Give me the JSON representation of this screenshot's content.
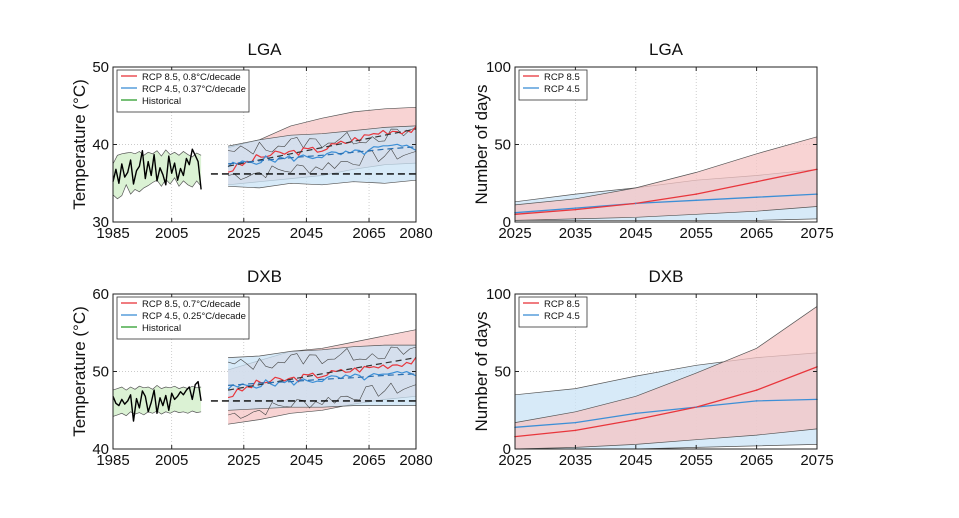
{
  "figure": {
    "colors": {
      "rcp85": "#e8363c",
      "rcp45": "#3d8fd6",
      "historical": "#2e9e2e",
      "rcp85_band": "#f6c4c4",
      "rcp45_band": "#c9e3f5",
      "hist_band": "#cfeec6"
    }
  },
  "chart_data": [
    {
      "id": "lga-temp",
      "type": "line",
      "title": "LGA",
      "xlabel": "",
      "ylabel": "Temperature (°C)",
      "xlim": [
        1985,
        2080
      ],
      "ylim": [
        30,
        50
      ],
      "xticks": [
        "1985",
        "2005",
        "2025",
        "2045",
        "2065",
        "2080"
      ],
      "yticks": [
        "30",
        "40",
        "50"
      ],
      "legend": [
        "RCP 8.5, 0.8°C/decade",
        "RCP 4.5, 0.37°C/decade",
        "Historical"
      ],
      "baseline": 36.2,
      "historical": {
        "x": [
          1985,
          1986,
          1987,
          1988,
          1989,
          1990,
          1991,
          1992,
          1993,
          1994,
          1995,
          1996,
          1997,
          1998,
          1999,
          2000,
          2001,
          2002,
          2003,
          2004,
          2005,
          2006,
          2007,
          2008,
          2009,
          2010,
          2011,
          2012,
          2013,
          2014,
          2015
        ],
        "y": [
          35.2,
          36.8,
          35.0,
          37.5,
          35.8,
          36.4,
          38.0,
          34.9,
          36.6,
          37.2,
          39.2,
          35.6,
          37.8,
          36.0,
          38.7,
          35.3,
          37.0,
          36.1,
          34.8,
          38.5,
          36.3,
          37.6,
          35.4,
          36.9,
          36.0,
          38.2,
          37.4,
          39.4,
          38.6,
          37.8,
          34.2
        ],
        "band_lo": [
          33.5,
          33.0,
          33.4,
          34.8,
          33.6,
          34.2,
          33.9,
          34.4,
          34.7,
          35.1,
          35.4,
          34.6,
          35.5,
          34.9,
          35.7,
          34.6,
          35.3,
          34.8,
          34.5,
          35.3,
          34.6
        ],
        "band_hi": [
          37.5,
          38.6,
          38.8,
          38.9,
          39.0,
          38.8,
          39.1,
          38.6,
          39.0,
          38.8,
          39.2,
          38.5,
          39.3,
          38.7,
          39.0,
          38.6,
          39.1,
          38.7,
          38.4,
          38.9,
          38.6
        ]
      },
      "projection_x": [
        2020,
        2030,
        2040,
        2050,
        2060,
        2070,
        2080
      ],
      "rcp85": {
        "trend": [
          37.2,
          38.0,
          38.8,
          39.6,
          40.4,
          41.2,
          42.0
        ],
        "mean": [
          36.6,
          38.4,
          39.0,
          39.4,
          40.6,
          41.8,
          41.9
        ],
        "band_lo": [
          34.8,
          35.2,
          35.6,
          36.0,
          36.8,
          37.4,
          37.6
        ],
        "band_hi": [
          39.6,
          40.6,
          42.4,
          43.4,
          44.2,
          44.6,
          44.8
        ]
      },
      "rcp45": {
        "trend": [
          37.5,
          37.9,
          38.3,
          38.6,
          39.0,
          39.4,
          39.7
        ],
        "mean": [
          37.2,
          38.0,
          38.2,
          38.6,
          38.8,
          39.6,
          39.6
        ],
        "band_lo": [
          34.6,
          34.4,
          35.0,
          34.8,
          35.2,
          35.0,
          35.4
        ],
        "band_hi": [
          39.8,
          40.6,
          41.2,
          41.4,
          41.8,
          42.2,
          42.4
        ]
      }
    },
    {
      "id": "lga-days",
      "type": "line",
      "title": "LGA",
      "xlabel": "",
      "ylabel": "Number of days",
      "xlim": [
        2025,
        2075
      ],
      "ylim": [
        0,
        100
      ],
      "xticks": [
        "2025",
        "2035",
        "2045",
        "2055",
        "2065",
        "2075"
      ],
      "yticks": [
        "0",
        "50",
        "100"
      ],
      "legend": [
        "RCP 8.5",
        "RCP 4.5"
      ],
      "x": [
        2025,
        2035,
        2045,
        2055,
        2065,
        2075
      ],
      "rcp85": {
        "mean": [
          5,
          8,
          12,
          18,
          26,
          34
        ],
        "band_lo": [
          1,
          2,
          3,
          5,
          7,
          10
        ],
        "band_hi": [
          11,
          15,
          22,
          32,
          44,
          55
        ]
      },
      "rcp45": {
        "mean": [
          6,
          9,
          12,
          14,
          16,
          18
        ],
        "band_lo": [
          1,
          1,
          1,
          1,
          1,
          2
        ],
        "band_hi": [
          13,
          18,
          22,
          27,
          30,
          34
        ]
      }
    },
    {
      "id": "dxb-temp",
      "type": "line",
      "title": "DXB",
      "xlabel": "",
      "ylabel": "Temperature (°C)",
      "xlim": [
        1985,
        2080
      ],
      "ylim": [
        40,
        60
      ],
      "xticks": [
        "1985",
        "2005",
        "2025",
        "2045",
        "2065",
        "2080"
      ],
      "yticks": [
        "40",
        "50",
        "60"
      ],
      "legend": [
        "RCP 8.5, 0.7°C/decade",
        "RCP 4.5, 0.25°C/decade",
        "Historical"
      ],
      "baseline": 46.2,
      "historical": {
        "x": [
          1985,
          1986,
          1987,
          1988,
          1989,
          1990,
          1991,
          1992,
          1993,
          1994,
          1995,
          1996,
          1997,
          1998,
          1999,
          2000,
          2001,
          2002,
          2003,
          2004,
          2005,
          2006,
          2007,
          2008,
          2009,
          2010,
          2011,
          2012,
          2013,
          2014,
          2015
        ],
        "y": [
          46.8,
          45.9,
          45.6,
          46.4,
          45.8,
          46.2,
          47.0,
          43.6,
          46.5,
          45.3,
          47.5,
          46.8,
          44.8,
          46.0,
          47.6,
          44.6,
          46.6,
          45.6,
          46.9,
          45.0,
          47.2,
          46.4,
          46.8,
          47.4,
          47.0,
          47.6,
          48.0,
          46.4,
          48.3,
          48.7,
          46.2
        ],
        "band_lo": [
          44.2,
          44.4,
          44.6,
          44.3,
          44.8,
          44.5,
          44.7,
          44.4,
          44.8,
          44.6,
          44.9,
          44.5,
          44.8,
          44.6,
          44.9,
          44.7,
          44.8,
          44.6,
          44.9,
          44.7,
          44.8
        ],
        "band_hi": [
          47.6,
          47.8,
          48.0,
          47.6,
          48.0,
          47.7,
          48.1,
          47.9,
          48.0,
          47.7,
          48.2,
          47.8,
          48.0,
          47.9,
          48.1,
          47.8,
          48.0,
          47.8,
          48.1,
          47.9,
          48.0
        ]
      },
      "projection_x": [
        2020,
        2030,
        2040,
        2050,
        2060,
        2070,
        2080
      ],
      "rcp85": {
        "trend": [
          47.6,
          48.3,
          49.0,
          49.7,
          50.4,
          51.1,
          51.8
        ],
        "mean": [
          46.8,
          48.6,
          49.0,
          49.6,
          50.2,
          50.8,
          51.4
        ],
        "band_lo": [
          43.2,
          43.8,
          44.6,
          45.0,
          45.8,
          46.4,
          46.8
        ],
        "band_hi": [
          50.2,
          51.4,
          52.6,
          53.0,
          53.8,
          54.6,
          55.4
        ]
      },
      "rcp45": {
        "trend": [
          48.2,
          48.5,
          48.7,
          49.0,
          49.2,
          49.5,
          49.7
        ],
        "mean": [
          47.8,
          48.4,
          48.6,
          49.0,
          49.2,
          49.4,
          49.8
        ],
        "band_lo": [
          45.0,
          45.2,
          45.4,
          45.4,
          45.6,
          45.6,
          45.6
        ],
        "band_hi": [
          51.8,
          52.0,
          52.6,
          52.8,
          53.2,
          53.4,
          53.4
        ]
      }
    },
    {
      "id": "dxb-days",
      "type": "line",
      "title": "DXB",
      "xlabel": "",
      "ylabel": "Number of days",
      "xlim": [
        2025,
        2075
      ],
      "ylim": [
        0,
        100
      ],
      "xticks": [
        "2025",
        "2035",
        "2045",
        "2055",
        "2065",
        "2075"
      ],
      "yticks": [
        "0",
        "50",
        "100"
      ],
      "legend": [
        "RCP 8.5",
        "RCP 4.5"
      ],
      "x": [
        2025,
        2035,
        2045,
        2055,
        2065,
        2075
      ],
      "rcp85": {
        "mean": [
          8,
          12,
          19,
          27,
          38,
          53
        ],
        "band_lo": [
          0,
          1,
          3,
          6,
          9,
          13
        ],
        "band_hi": [
          17,
          24,
          34,
          49,
          65,
          92
        ]
      },
      "rcp45": {
        "mean": [
          14,
          17,
          23,
          27,
          31,
          32
        ],
        "band_lo": [
          0,
          0,
          0,
          1,
          2,
          3
        ],
        "band_hi": [
          35,
          39,
          47,
          54,
          59,
          62
        ]
      }
    }
  ]
}
